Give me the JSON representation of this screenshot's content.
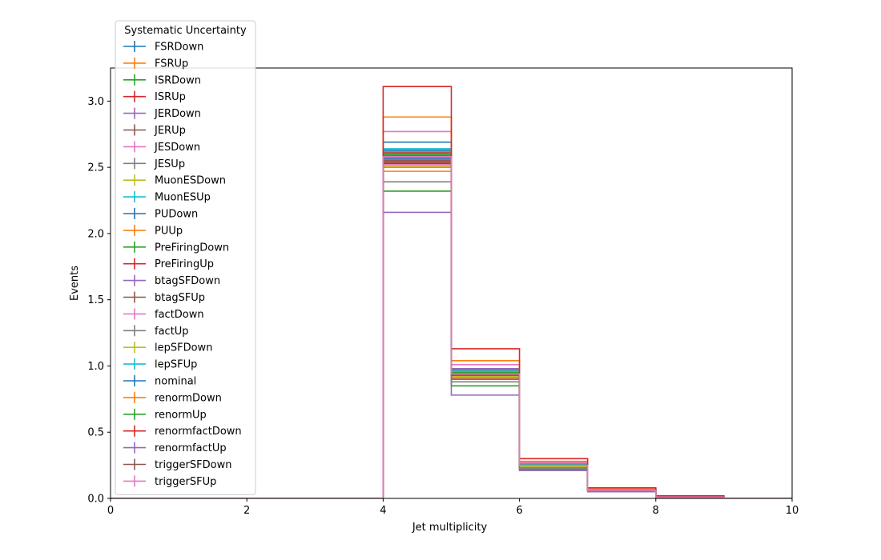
{
  "chart_data": {
    "type": "line",
    "drawstyle": "steps",
    "xlabel": "Jet multiplicity",
    "ylabel": "Events",
    "xlim": [
      0,
      10
    ],
    "ylim": [
      0,
      3.25
    ],
    "xticks": [
      "0",
      "2",
      "4",
      "6",
      "8",
      "10"
    ],
    "yticks": [
      "0.0",
      "0.5",
      "1.0",
      "1.5",
      "2.0",
      "2.5",
      "3.0"
    ],
    "grid": false,
    "legend": {
      "title": "Systematic Uncertainty",
      "placement": "upper-left, extends above axes"
    },
    "bin_edges": [
      0,
      1,
      2,
      3,
      4,
      5,
      6,
      7,
      8,
      9,
      10
    ],
    "series": [
      {
        "name": "FSRDown",
        "color": "#1f77b4",
        "values": [
          0,
          0,
          0,
          0,
          2.69,
          0.95,
          0.25,
          0.06,
          0.01,
          0
        ]
      },
      {
        "name": "FSRUp",
        "color": "#ff7f0e",
        "values": [
          0,
          0,
          0,
          0,
          2.47,
          0.91,
          0.24,
          0.06,
          0.01,
          0
        ]
      },
      {
        "name": "ISRDown",
        "color": "#2ca02c",
        "values": [
          0,
          0,
          0,
          0,
          2.32,
          0.85,
          0.22,
          0.06,
          0.01,
          0
        ]
      },
      {
        "name": "ISRUp",
        "color": "#d62728",
        "values": [
          0,
          0,
          0,
          0,
          2.61,
          0.97,
          0.26,
          0.07,
          0.01,
          0
        ]
      },
      {
        "name": "JERDown",
        "color": "#9467bd",
        "values": [
          0,
          0,
          0,
          0,
          2.55,
          0.94,
          0.25,
          0.06,
          0.01,
          0
        ]
      },
      {
        "name": "JERUp",
        "color": "#8c564b",
        "values": [
          0,
          0,
          0,
          0,
          2.54,
          0.94,
          0.25,
          0.06,
          0.01,
          0
        ]
      },
      {
        "name": "JESDown",
        "color": "#e377c2",
        "values": [
          0,
          0,
          0,
          0,
          2.52,
          0.92,
          0.24,
          0.06,
          0.01,
          0
        ]
      },
      {
        "name": "JESUp",
        "color": "#7f7f7f",
        "values": [
          0,
          0,
          0,
          0,
          2.58,
          0.97,
          0.26,
          0.07,
          0.01,
          0
        ]
      },
      {
        "name": "MuonESDown",
        "color": "#bcbd22",
        "values": [
          0,
          0,
          0,
          0,
          2.53,
          0.93,
          0.25,
          0.06,
          0.01,
          0
        ]
      },
      {
        "name": "MuonESUp",
        "color": "#17becf",
        "values": [
          0,
          0,
          0,
          0,
          2.64,
          0.96,
          0.26,
          0.06,
          0.01,
          0
        ]
      },
      {
        "name": "PUDown",
        "color": "#1f77b4",
        "values": [
          0,
          0,
          0,
          0,
          2.63,
          0.95,
          0.25,
          0.06,
          0.01,
          0
        ]
      },
      {
        "name": "PUUp",
        "color": "#ff7f0e",
        "values": [
          0,
          0,
          0,
          0,
          2.5,
          0.92,
          0.24,
          0.06,
          0.01,
          0
        ]
      },
      {
        "name": "PreFiringDown",
        "color": "#2ca02c",
        "values": [
          0,
          0,
          0,
          0,
          2.59,
          0.95,
          0.25,
          0.06,
          0.01,
          0
        ]
      },
      {
        "name": "PreFiringUp",
        "color": "#d62728",
        "values": [
          0,
          0,
          0,
          0,
          2.53,
          0.93,
          0.25,
          0.06,
          0.01,
          0
        ]
      },
      {
        "name": "btagSFDown",
        "color": "#9467bd",
        "values": [
          0,
          0,
          0,
          0,
          2.56,
          0.98,
          0.27,
          0.07,
          0.01,
          0
        ]
      },
      {
        "name": "btagSFUp",
        "color": "#8c564b",
        "values": [
          0,
          0,
          0,
          0,
          2.55,
          0.9,
          0.23,
          0.06,
          0.01,
          0
        ]
      },
      {
        "name": "factDown",
        "color": "#e377c2",
        "values": [
          0,
          0,
          0,
          0,
          2.77,
          1.01,
          0.27,
          0.07,
          0.01,
          0
        ]
      },
      {
        "name": "factUp",
        "color": "#7f7f7f",
        "values": [
          0,
          0,
          0,
          0,
          2.39,
          0.88,
          0.23,
          0.06,
          0.01,
          0
        ]
      },
      {
        "name": "lepSFDown",
        "color": "#bcbd22",
        "values": [
          0,
          0,
          0,
          0,
          2.51,
          0.92,
          0.24,
          0.06,
          0.01,
          0
        ]
      },
      {
        "name": "lepSFUp",
        "color": "#17becf",
        "values": [
          0,
          0,
          0,
          0,
          2.62,
          0.96,
          0.25,
          0.06,
          0.01,
          0
        ]
      },
      {
        "name": "nominal",
        "color": "#1f77b4",
        "values": [
          0,
          0,
          0,
          0,
          2.57,
          0.94,
          0.25,
          0.06,
          0.01,
          0
        ]
      },
      {
        "name": "renormDown",
        "color": "#ff7f0e",
        "values": [
          0,
          0,
          0,
          0,
          2.88,
          1.04,
          0.28,
          0.07,
          0.01,
          0
        ]
      },
      {
        "name": "renormUp",
        "color": "#2ca02c",
        "values": [
          0,
          0,
          0,
          0,
          2.6,
          0.95,
          0.25,
          0.06,
          0.01,
          0
        ]
      },
      {
        "name": "renormfactDown",
        "color": "#d62728",
        "values": [
          0,
          0,
          0,
          0,
          3.11,
          1.13,
          0.3,
          0.08,
          0.02,
          0
        ]
      },
      {
        "name": "renormfactUp",
        "color": "#9467bd",
        "values": [
          0,
          0,
          0,
          0,
          2.16,
          0.78,
          0.21,
          0.05,
          0.01,
          0
        ]
      },
      {
        "name": "triggerSFDown",
        "color": "#8c564b",
        "values": [
          0,
          0,
          0,
          0,
          2.55,
          0.93,
          0.25,
          0.06,
          0.01,
          0
        ]
      },
      {
        "name": "triggerSFUp",
        "color": "#e377c2",
        "values": [
          0,
          0,
          0,
          0,
          2.58,
          0.94,
          0.25,
          0.06,
          0.01,
          0
        ]
      }
    ]
  }
}
